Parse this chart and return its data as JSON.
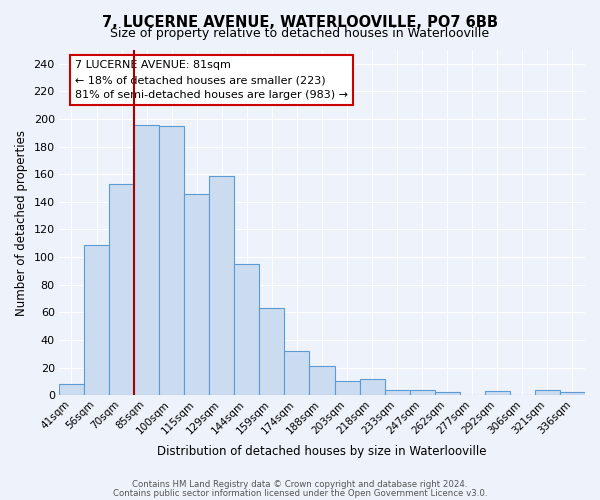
{
  "title": "7, LUCERNE AVENUE, WATERLOOVILLE, PO7 6BB",
  "subtitle": "Size of property relative to detached houses in Waterlooville",
  "xlabel": "Distribution of detached houses by size in Waterlooville",
  "ylabel": "Number of detached properties",
  "bar_labels": [
    "41sqm",
    "56sqm",
    "70sqm",
    "85sqm",
    "100sqm",
    "115sqm",
    "129sqm",
    "144sqm",
    "159sqm",
    "174sqm",
    "188sqm",
    "203sqm",
    "218sqm",
    "233sqm",
    "247sqm",
    "262sqm",
    "277sqm",
    "292sqm",
    "306sqm",
    "321sqm",
    "336sqm"
  ],
  "bar_values": [
    8,
    109,
    153,
    196,
    195,
    146,
    159,
    95,
    63,
    32,
    21,
    10,
    12,
    4,
    4,
    2,
    0,
    3,
    0,
    4,
    2
  ],
  "bar_color": "#ccdcf0",
  "bar_edge_color": "#5b9bd5",
  "ylim": [
    0,
    250
  ],
  "yticks": [
    0,
    20,
    40,
    60,
    80,
    100,
    120,
    140,
    160,
    180,
    200,
    220,
    240
  ],
  "vline_color": "#aa0000",
  "annotation_title": "7 LUCERNE AVENUE: 81sqm",
  "annotation_line1": "← 18% of detached houses are smaller (223)",
  "annotation_line2": "81% of semi-detached houses are larger (983) →",
  "annotation_box_color": "#ffffff",
  "annotation_box_edge": "#cc0000",
  "footer1": "Contains HM Land Registry data © Crown copyright and database right 2024.",
  "footer2": "Contains public sector information licensed under the Open Government Licence v3.0.",
  "bg_color": "#eef2fa",
  "plot_bg_color": "#eef2fa",
  "title_fontsize": 10.5,
  "subtitle_fontsize": 9,
  "grid_color": "#ffffff"
}
